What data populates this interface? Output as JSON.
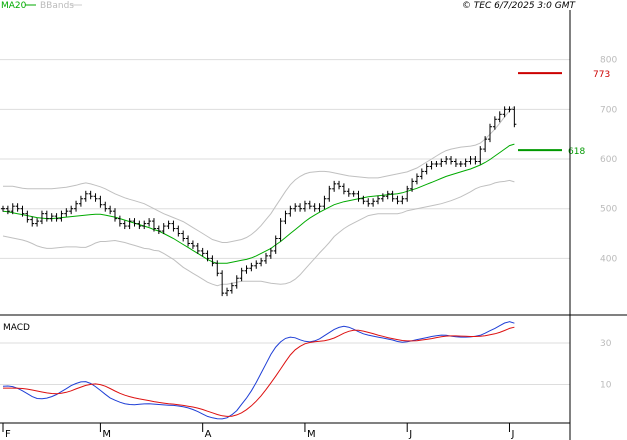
{
  "header": {
    "legend_ma": "MA20",
    "legend_bb": "BBands",
    "copyright": "© TEC 6/7/2025 3:0 GMT"
  },
  "macd_panel": {
    "label": "MACD"
  },
  "colors": {
    "ma": "#00aa00",
    "bbands": "#c0c0c0",
    "resistance": "#cc0000",
    "support": "#009900",
    "macd": "#1f3fd6",
    "signal": "#dd1111",
    "price": "#000000",
    "grid": "#dddddd"
  },
  "chart_data": [
    {
      "type": "bar",
      "name": "price-panel",
      "ylim": [
        290,
        900
      ],
      "yticks": [
        "400",
        "500",
        "600",
        "700",
        "800"
      ],
      "ytick_values": [
        400,
        500,
        600,
        700,
        800
      ],
      "xlabels": [
        "F",
        "M",
        "A",
        "M",
        "J",
        "J"
      ],
      "xlabel_index": [
        0,
        20,
        41,
        62,
        83,
        104
      ],
      "close": [
        500,
        495,
        505,
        500,
        490,
        478,
        470,
        475,
        490,
        480,
        485,
        480,
        490,
        495,
        500,
        510,
        520,
        530,
        525,
        520,
        508,
        500,
        495,
        480,
        470,
        465,
        475,
        470,
        465,
        470,
        475,
        460,
        455,
        465,
        470,
        460,
        450,
        440,
        430,
        425,
        415,
        410,
        400,
        390,
        370,
        330,
        335,
        345,
        360,
        375,
        380,
        385,
        390,
        395,
        405,
        415,
        440,
        475,
        490,
        500,
        505,
        500,
        510,
        505,
        500,
        505,
        520,
        540,
        550,
        545,
        535,
        530,
        530,
        520,
        515,
        510,
        515,
        520,
        525,
        530,
        520,
        515,
        520,
        540,
        555,
        565,
        575,
        585,
        590,
        590,
        595,
        600,
        595,
        590,
        590,
        595,
        600,
        595,
        620,
        640,
        665,
        680,
        690,
        700,
        700,
        670
      ],
      "ma20": [
        495,
        494,
        492,
        490,
        488,
        486,
        484,
        482,
        481,
        480,
        480,
        481,
        482,
        483,
        484,
        485,
        486,
        487,
        488,
        489,
        489,
        487,
        485,
        483,
        480,
        477,
        474,
        471,
        468,
        465,
        462,
        458,
        455,
        450,
        445,
        440,
        434,
        428,
        422,
        416,
        410,
        404,
        398,
        393,
        390,
        390,
        390,
        392,
        394,
        396,
        398,
        401,
        405,
        410,
        415,
        420,
        427,
        434,
        442,
        450,
        458,
        466,
        474,
        481,
        487,
        493,
        498,
        503,
        508,
        511,
        514,
        516,
        518,
        520,
        522,
        524,
        525,
        526,
        527,
        528,
        529,
        530,
        532,
        535,
        538,
        541,
        545,
        549,
        553,
        557,
        561,
        565,
        568,
        571,
        574,
        577,
        580,
        584,
        588,
        593,
        599,
        606,
        613,
        620,
        627,
        630
      ],
      "bb_upper": [
        545,
        545,
        545,
        543,
        541,
        540,
        540,
        540,
        540,
        540,
        540,
        541,
        542,
        543,
        545,
        547,
        550,
        552,
        550,
        547,
        544,
        540,
        535,
        530,
        526,
        522,
        519,
        516,
        513,
        510,
        505,
        500,
        495,
        490,
        486,
        482,
        478,
        474,
        468,
        462,
        456,
        450,
        444,
        438,
        435,
        432,
        432,
        434,
        436,
        438,
        442,
        448,
        456,
        466,
        478,
        490,
        505,
        520,
        535,
        548,
        558,
        565,
        570,
        573,
        574,
        575,
        575,
        574,
        572,
        570,
        568,
        566,
        565,
        564,
        563,
        562,
        562,
        562,
        564,
        566,
        568,
        570,
        572,
        574,
        578,
        582,
        588,
        594,
        600,
        606,
        612,
        617,
        620,
        622,
        624,
        625,
        626,
        628,
        632,
        640,
        650,
        660,
        672,
        685,
        697,
        706
      ],
      "bb_lower": [
        445,
        443,
        441,
        439,
        437,
        434,
        430,
        425,
        422,
        420,
        420,
        421,
        422,
        423,
        423,
        423,
        422,
        422,
        426,
        431,
        434,
        434,
        435,
        436,
        434,
        432,
        429,
        426,
        423,
        420,
        419,
        416,
        415,
        410,
        404,
        398,
        390,
        382,
        376,
        370,
        364,
        358,
        352,
        348,
        345,
        348,
        348,
        350,
        352,
        354,
        354,
        354,
        354,
        354,
        352,
        350,
        349,
        348,
        349,
        352,
        358,
        367,
        378,
        389,
        400,
        411,
        421,
        432,
        444,
        452,
        460,
        466,
        471,
        476,
        481,
        486,
        488,
        490,
        490,
        490,
        490,
        490,
        492,
        496,
        498,
        500,
        502,
        504,
        506,
        508,
        510,
        513,
        516,
        520,
        524,
        529,
        534,
        540,
        544,
        546,
        548,
        552,
        554,
        555,
        557,
        554
      ],
      "resistance": 773,
      "resistance_label": "773",
      "support": 618,
      "support_label": "618"
    },
    {
      "type": "line",
      "name": "macd-panel",
      "ylim": [
        -8,
        42
      ],
      "yticks": [
        "30",
        "10"
      ],
      "ytick_values": [
        30,
        10
      ],
      "series": [
        {
          "name": "MACD",
          "values": [
            9.2,
            9.3,
            9.0,
            8.2,
            7.0,
            5.6,
            4.2,
            3.3,
            3.2,
            3.5,
            4.2,
            5.2,
            6.6,
            8.0,
            9.5,
            10.5,
            11.3,
            11.4,
            10.5,
            9.0,
            7.2,
            5.3,
            3.6,
            2.5,
            1.5,
            0.8,
            0.4,
            0.3,
            0.5,
            0.7,
            0.8,
            0.6,
            0.4,
            0.2,
            0.1,
            0.0,
            -0.3,
            -0.7,
            -1.2,
            -2.0,
            -3.0,
            -4.2,
            -5.3,
            -6.0,
            -6.4,
            -6.5,
            -6.0,
            -4.5,
            -2.5,
            0.5,
            3.5,
            7.0,
            11.0,
            15.5,
            20.0,
            24.5,
            28.0,
            30.5,
            32.2,
            32.8,
            32.5,
            31.5,
            30.8,
            30.5,
            31.0,
            32.0,
            33.5,
            35.0,
            36.5,
            37.5,
            38.0,
            37.6,
            36.6,
            35.4,
            34.4,
            33.8,
            33.3,
            32.8,
            32.4,
            31.9,
            31.4,
            30.7,
            30.3,
            30.6,
            31.1,
            31.6,
            32.1,
            32.6,
            33.1,
            33.5,
            33.8,
            33.7,
            33.3,
            33.0,
            32.8,
            32.8,
            32.9,
            33.2,
            33.7,
            34.7,
            35.9,
            37.0,
            38.3,
            39.6,
            40.2,
            39.5
          ]
        },
        {
          "name": "Signal",
          "values": [
            8.3,
            8.3,
            8.3,
            8.2,
            8.1,
            7.8,
            7.4,
            6.9,
            6.4,
            6.0,
            5.7,
            5.6,
            5.8,
            6.3,
            7.0,
            7.9,
            8.8,
            9.6,
            10.1,
            10.3,
            10.0,
            9.2,
            8.1,
            6.9,
            5.8,
            4.9,
            4.2,
            3.6,
            3.1,
            2.7,
            2.3,
            1.8,
            1.4,
            1.1,
            0.8,
            0.6,
            0.3,
            0.0,
            -0.4,
            -0.8,
            -1.3,
            -2.0,
            -2.8,
            -3.6,
            -4.4,
            -5.0,
            -5.3,
            -5.2,
            -4.6,
            -3.6,
            -2.1,
            -0.2,
            2.0,
            4.6,
            7.6,
            10.8,
            14.0,
            17.5,
            21.0,
            24.2,
            26.7,
            28.4,
            29.6,
            30.2,
            30.6,
            30.8,
            31.1,
            31.6,
            32.4,
            33.5,
            34.7,
            35.6,
            36.1,
            36.1,
            35.7,
            35.1,
            34.5,
            33.8,
            33.2,
            32.6,
            32.1,
            31.6,
            31.2,
            31.0,
            31.0,
            31.1,
            31.4,
            31.7,
            32.1,
            32.6,
            33.0,
            33.3,
            33.4,
            33.4,
            33.3,
            33.2,
            33.1,
            33.1,
            33.2,
            33.5,
            33.9,
            34.4,
            35.1,
            36.0,
            37.0,
            37.6
          ]
        }
      ]
    }
  ]
}
